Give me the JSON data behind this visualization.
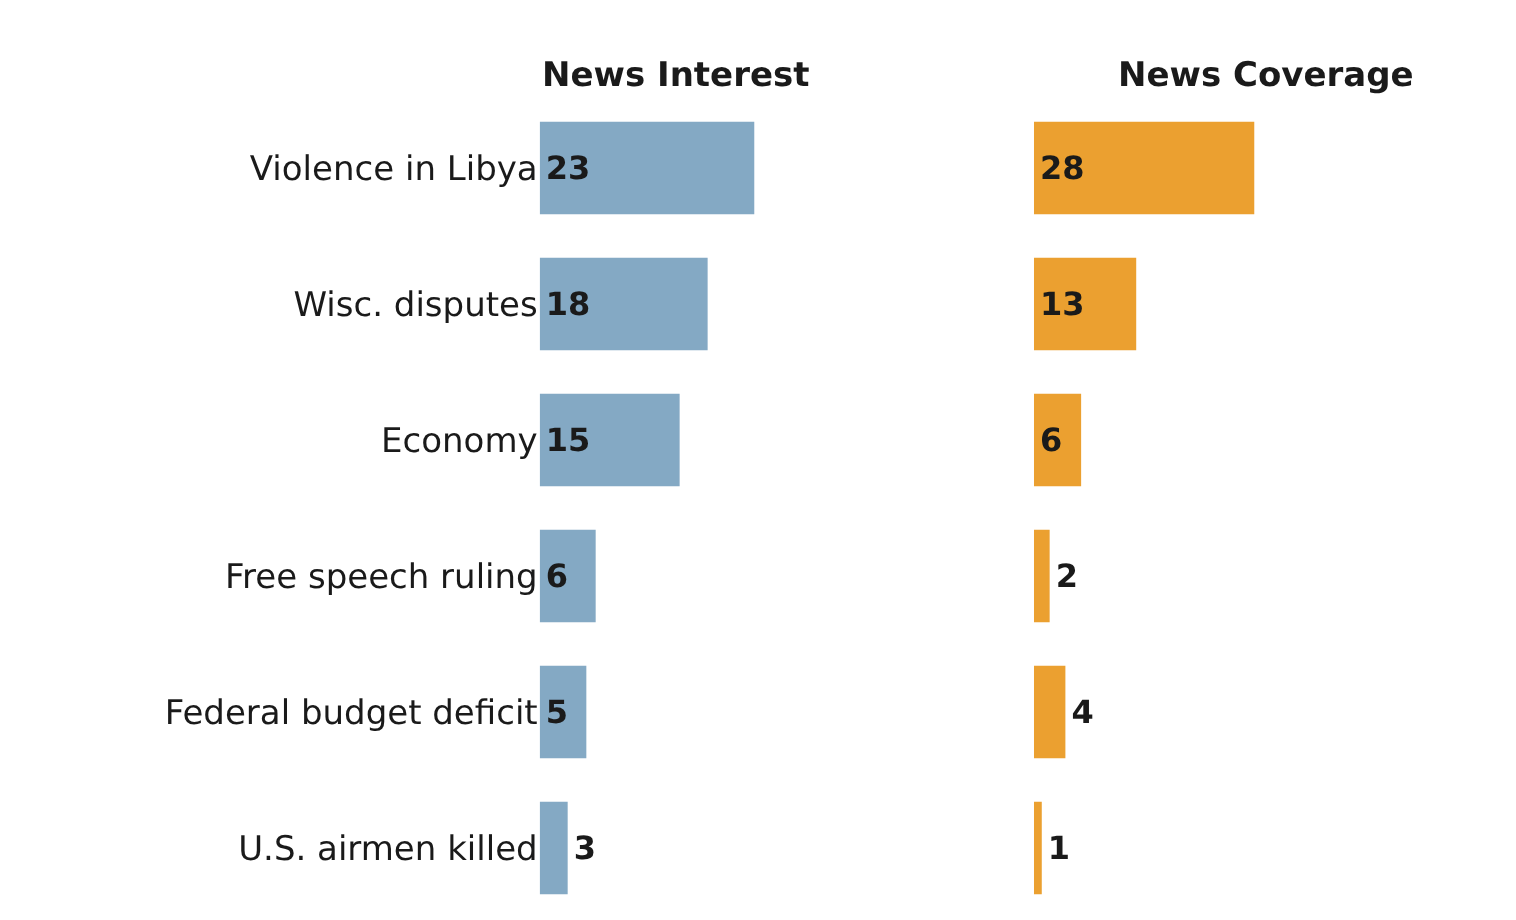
{
  "chart_data": [
    {
      "type": "bar",
      "orientation": "horizontal",
      "title": "News Interest",
      "categories": [
        "Violence in Libya",
        "Wisc. disputes",
        "Economy",
        "Free speech ruling",
        "Federal budget deficit",
        "U.S. airmen killed"
      ],
      "values": [
        23,
        18,
        15,
        6,
        5,
        3
      ],
      "color": "#84a9c4",
      "data_labels": true,
      "tick_labels": "y"
    },
    {
      "type": "bar",
      "orientation": "horizontal",
      "title": "News Coverage",
      "categories": [
        "Violence in Libya",
        "Wisc. disputes",
        "Economy",
        "Free speech ruling",
        "Federal budget deficit",
        "U.S. airmen killed"
      ],
      "values": [
        28,
        13,
        6,
        2,
        4,
        1
      ],
      "color": "#eba030",
      "data_labels": true,
      "tick_labels": false
    }
  ]
}
